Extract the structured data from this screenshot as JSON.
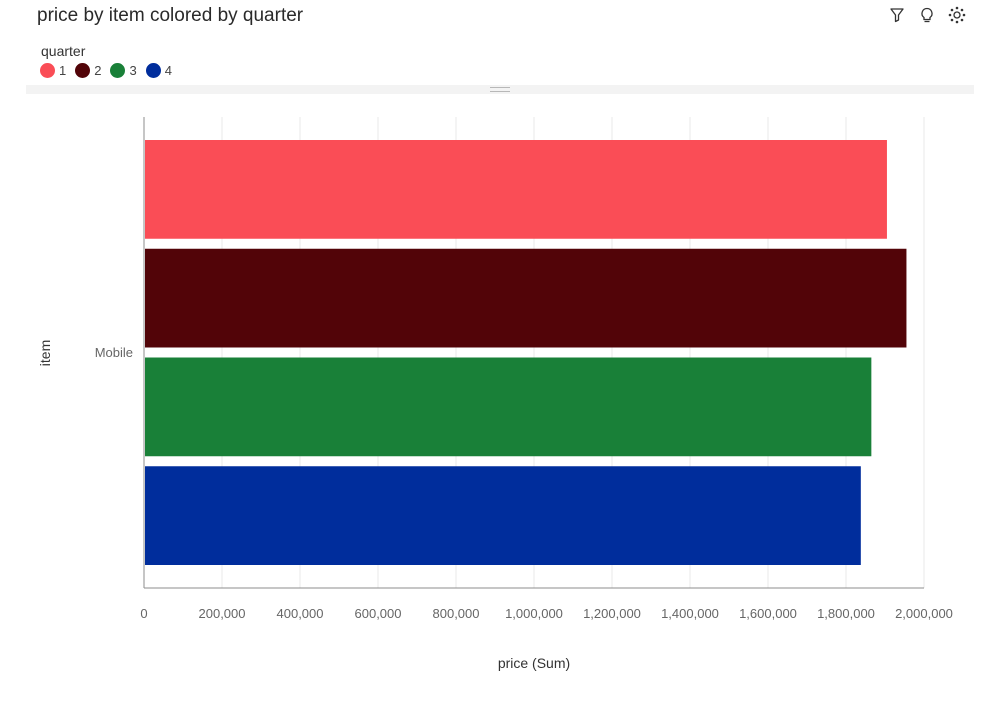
{
  "title": "price by item colored by quarter",
  "toolbar": {
    "icons": [
      "filter-icon",
      "lightbulb-icon",
      "settings-icon"
    ]
  },
  "legend": {
    "title": "quarter",
    "items": [
      {
        "label": "1",
        "color": "#fa4d56"
      },
      {
        "label": "2",
        "color": "#520408"
      },
      {
        "label": "3",
        "color": "#198038"
      },
      {
        "label": "4",
        "color": "#002d9c"
      }
    ]
  },
  "chart_data": {
    "type": "bar",
    "orientation": "horizontal",
    "categories": [
      "Mobile"
    ],
    "series": [
      {
        "name": "1",
        "values": [
          1905000
        ],
        "color": "#fa4d56"
      },
      {
        "name": "2",
        "values": [
          1955000
        ],
        "color": "#520408"
      },
      {
        "name": "3",
        "values": [
          1865000
        ],
        "color": "#198038"
      },
      {
        "name": "4",
        "values": [
          1838000
        ],
        "color": "#002d9c"
      }
    ],
    "xlabel": "price (Sum)",
    "ylabel": "item",
    "xlim": [
      0,
      2000000
    ],
    "xticks": [
      "0",
      "200,000",
      "400,000",
      "600,000",
      "800,000",
      "1,000,000",
      "1,200,000",
      "1,400,000",
      "1,600,000",
      "1,800,000",
      "2,000,000"
    ],
    "grid": true
  }
}
